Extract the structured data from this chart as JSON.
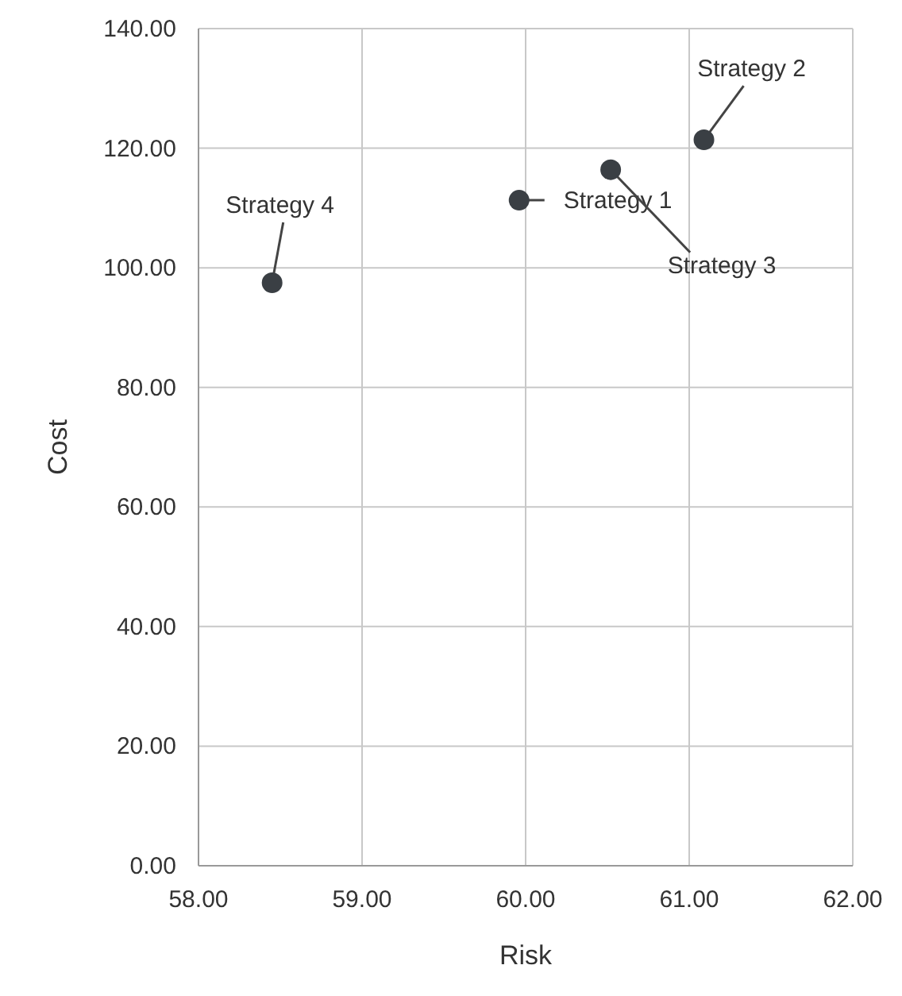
{
  "chart_data": {
    "type": "scatter",
    "xlabel": "Risk",
    "ylabel": "Cost",
    "x": [
      59.96,
      61.09,
      60.52,
      58.45
    ],
    "values": [
      111.3,
      121.4,
      116.4,
      97.5
    ],
    "color": "#3a3f44",
    "marker": "circle",
    "grid": true,
    "xlim": [
      58,
      62
    ],
    "ylim": [
      0,
      140
    ],
    "xticks": [
      {
        "value": 58,
        "label": "58.00"
      },
      {
        "value": 59,
        "label": "59.00"
      },
      {
        "value": 60,
        "label": "60.00"
      },
      {
        "value": 61,
        "label": "61.00"
      },
      {
        "value": 62,
        "label": "62.00"
      }
    ],
    "yticks": [
      {
        "value": 0,
        "label": "0.00"
      },
      {
        "value": 20,
        "label": "20.00"
      },
      {
        "value": 40,
        "label": "40.00"
      },
      {
        "value": 60,
        "label": "60.00"
      },
      {
        "value": 80,
        "label": "80.00"
      },
      {
        "value": 100,
        "label": "100.00"
      },
      {
        "value": 120,
        "label": "120.00"
      },
      {
        "value": 140,
        "label": "140.00"
      }
    ],
    "annotations": [
      {
        "text": "Strategy 1",
        "x": 59.96,
        "y": 111.3
      },
      {
        "text": "Strategy 2",
        "x": 61.09,
        "y": 121.4
      },
      {
        "text": "Strategy 3",
        "x": 60.52,
        "y": 116.4
      },
      {
        "text": "Strategy 4",
        "x": 58.45,
        "y": 97.5
      }
    ]
  }
}
